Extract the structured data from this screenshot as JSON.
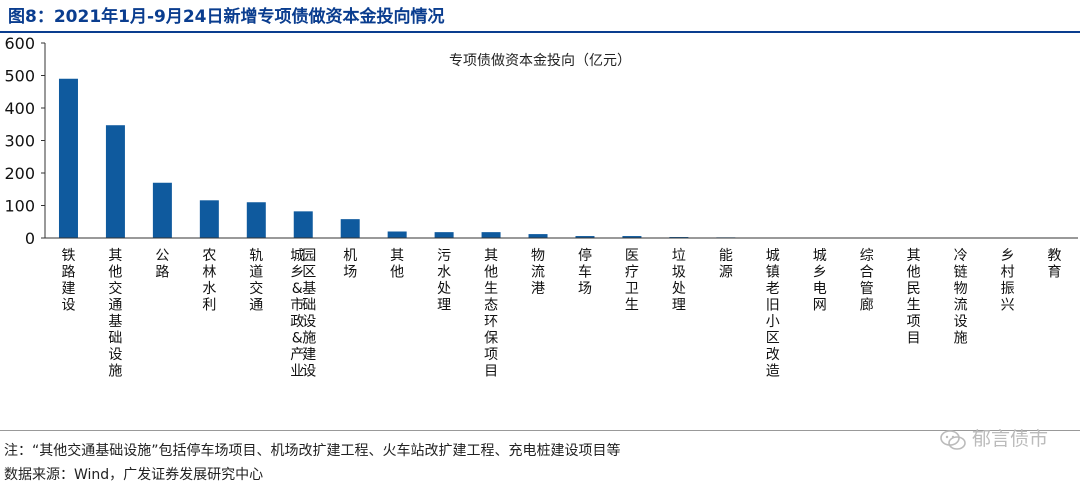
{
  "figure": {
    "title": "图8：2021年1月-9月24日新增专项债做资本金投向情况"
  },
  "chart_data": {
    "type": "bar",
    "title": "专项债做资本金投向（亿元）",
    "xlabel": "",
    "ylabel": "",
    "ylim": [
      0,
      600
    ],
    "yticks": [
      0,
      100,
      200,
      300,
      400,
      500,
      600
    ],
    "grid": false,
    "legend": "none",
    "bar_color": "#0f5a9e",
    "categories": [
      "铁路建设",
      "其他交通基础设施",
      "公路",
      "农林水利",
      "轨道交通",
      "城乡&市政&产业园区基础设施建设",
      "机场",
      "其他",
      "污水处理",
      "其他生态环保项目",
      "物流港",
      "停车场",
      "医疗卫生",
      "垃圾处理",
      "能源",
      "城镇老旧小区改造",
      "城乡电网",
      "综合管廊",
      "其他民生项目",
      "冷链物流设施",
      "乡村振兴",
      "教育"
    ],
    "values": [
      490,
      347,
      170,
      116,
      110,
      82,
      58,
      20,
      18,
      18,
      12,
      6,
      6,
      3,
      2,
      1,
      1,
      1,
      1,
      1,
      0.5,
      0.5
    ]
  },
  "footer": {
    "note": "注：“其他交通基础设施”包括停车场项目、机场改扩建工程、火车站改扩建工程、充电桩建设项目等",
    "source": "数据来源：Wind，广发证券发展研究中心",
    "watermark": "郁言债市"
  }
}
